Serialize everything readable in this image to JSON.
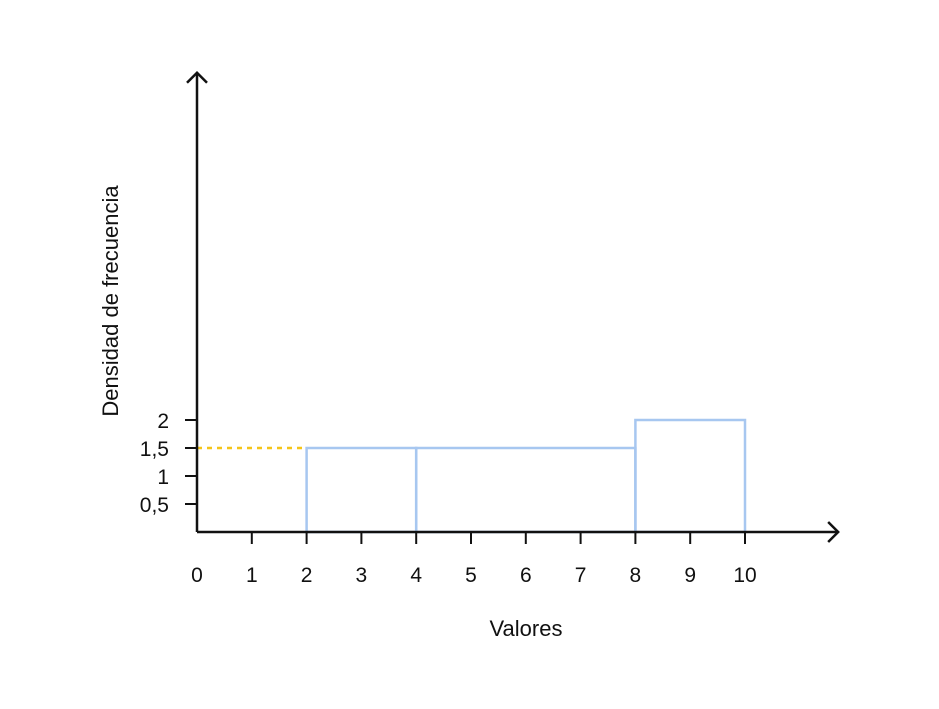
{
  "chart_data": {
    "type": "bar",
    "xlabel": "Valores",
    "ylabel": "Densidad de frecuencia",
    "x_ticks": [
      "0",
      "1",
      "2",
      "3",
      "4",
      "5",
      "6",
      "7",
      "8",
      "9",
      "10"
    ],
    "y_ticks": [
      {
        "value": 0.5,
        "label": "0,5"
      },
      {
        "value": 1,
        "label": "1"
      },
      {
        "value": 1.5,
        "label": "1,5"
      },
      {
        "value": 2,
        "label": "2"
      }
    ],
    "bins": [
      {
        "start": 2,
        "end": 4,
        "value": 1.5
      },
      {
        "start": 4,
        "end": 8,
        "value": 1.5
      },
      {
        "start": 8,
        "end": 10,
        "value": 2
      }
    ],
    "reference_line": {
      "y": 1.5,
      "from_x": 0,
      "to_x": 2,
      "style": "dotted",
      "color": "#f5c518"
    },
    "bar_color": "#a7c7f0",
    "axis_color": "#111111",
    "xlim": [
      0,
      11.7
    ],
    "ylim": [
      0,
      8.2
    ],
    "grid": false
  }
}
